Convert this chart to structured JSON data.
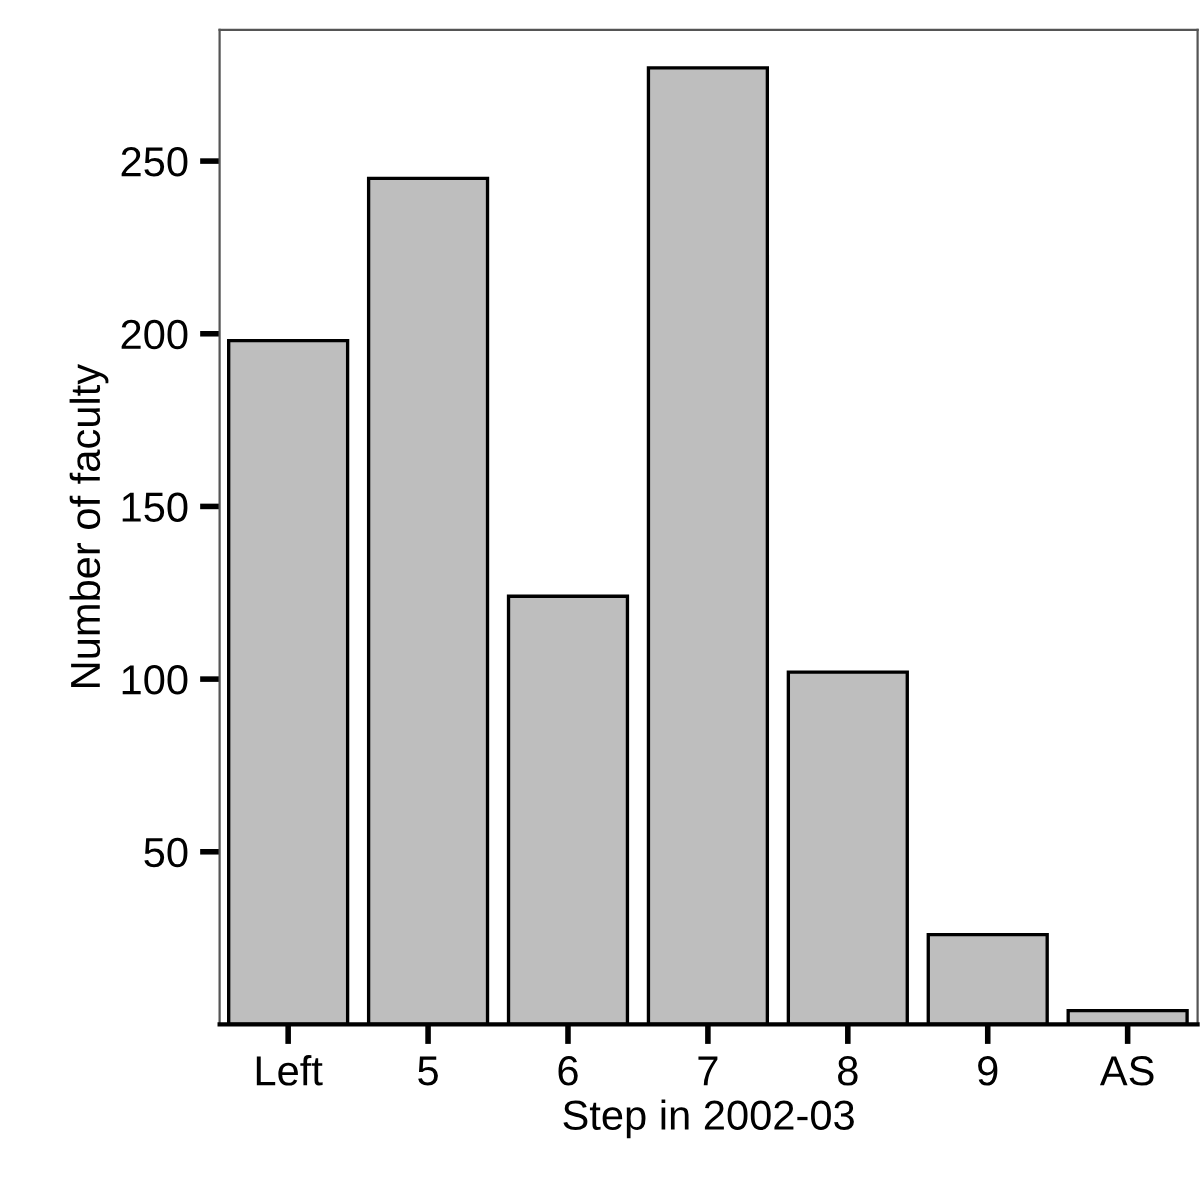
{
  "chart_data": {
    "type": "bar",
    "xlabel": "Step in 2002-03",
    "ylabel": "Number of faculty",
    "categories": [
      "Left",
      "5",
      "6",
      "7",
      "8",
      "9",
      "AS"
    ],
    "values": [
      198,
      245,
      124,
      277,
      102,
      26,
      4
    ],
    "color": "#bebebe",
    "ylim": [
      0,
      288
    ],
    "yticks": [
      50,
      100,
      150,
      200,
      250
    ],
    "grid": false
  }
}
